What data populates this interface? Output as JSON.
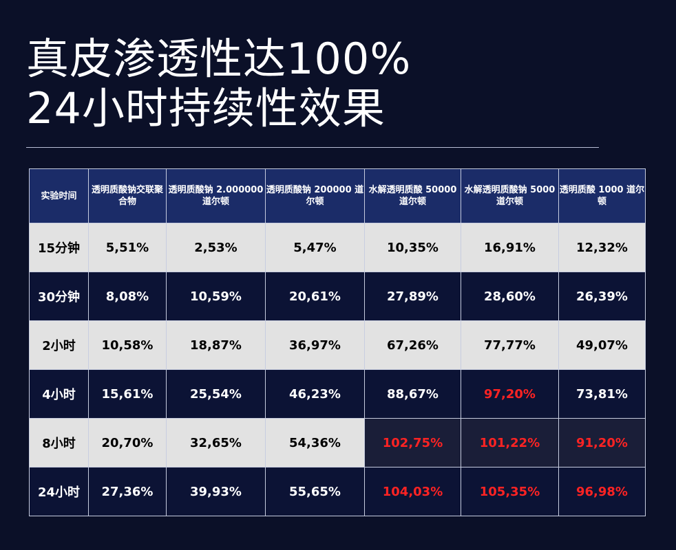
{
  "title": {
    "line1": "真皮渗透性达100%",
    "line2": "24小时持续性效果"
  },
  "table": {
    "headers": [
      "实验时间",
      "透明质酸钠交联聚合物",
      "透明质酸钠 2.000000 道尔顿",
      "透明质酸钠 200000 道尔顿",
      "水解透明质酸 50000 道尔顿",
      "水解透明质酸钠 5000 道尔顿",
      "透明质酸 1000 道尔顿"
    ],
    "rows": [
      {
        "time": "15分钟",
        "values": [
          "5,51%",
          "2,53%",
          "5,47%",
          "10,35%",
          "16,91%",
          "12,32%"
        ]
      },
      {
        "time": "30分钟",
        "values": [
          "8,08%",
          "10,59%",
          "20,61%",
          "27,89%",
          "28,60%",
          "26,39%"
        ]
      },
      {
        "time": "2小时",
        "values": [
          "10,58%",
          "18,87%",
          "36,97%",
          "67,26%",
          "77,77%",
          "49,07%"
        ]
      },
      {
        "time": "4小时",
        "values": [
          "15,61%",
          "25,54%",
          "46,23%",
          "88,67%",
          "97,20%",
          "73,81%"
        ]
      },
      {
        "time": "8小时",
        "values": [
          "20,70%",
          "32,65%",
          "54,36%",
          "102,75%",
          "101,22%",
          "91,20%"
        ]
      },
      {
        "time": "24小时",
        "values": [
          "27,36%",
          "39,93%",
          "55,65%",
          "104,03%",
          "105,35%",
          "96,98%"
        ]
      }
    ]
  },
  "colors": {
    "background": "#0b1028",
    "header": "#1b2c68",
    "row_light": "#e2e2e2",
    "row_dark": "#0c1335",
    "highlight_red": "#ff2323"
  }
}
